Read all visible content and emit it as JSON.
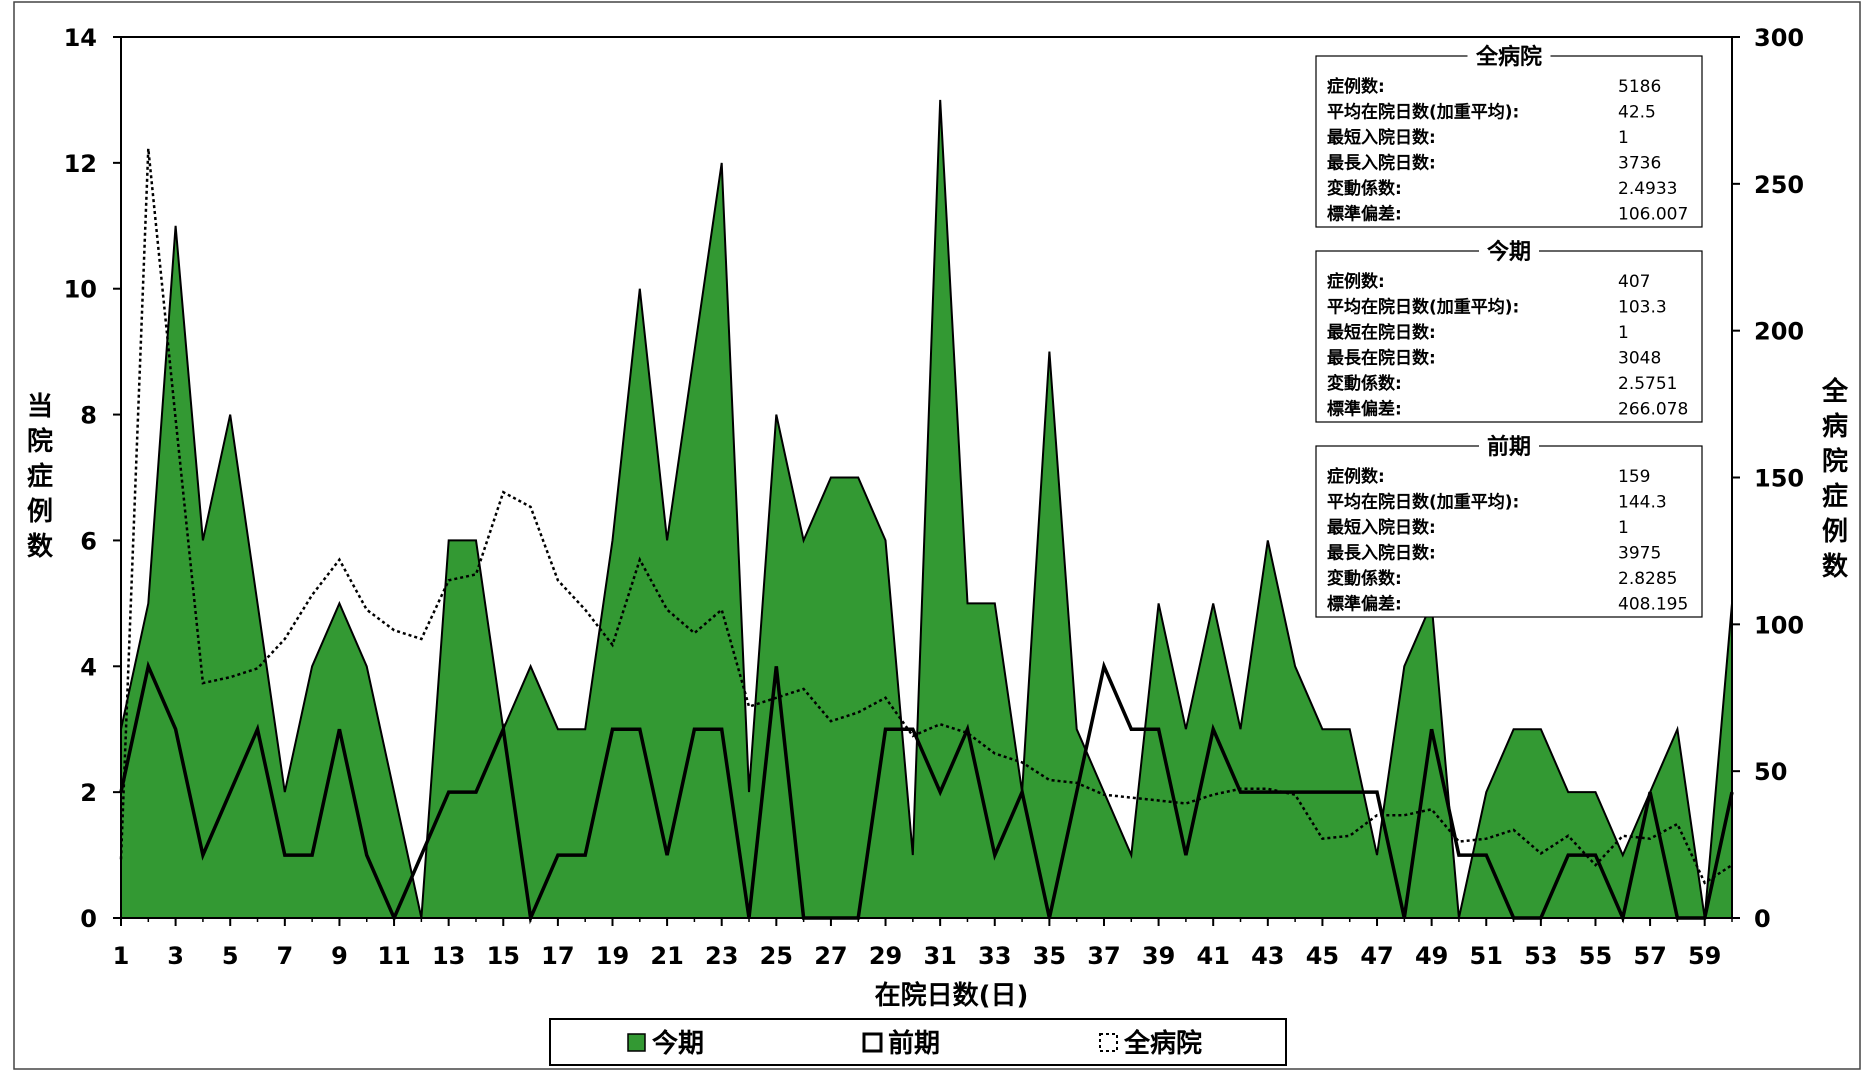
{
  "colors": {
    "current_fill": "#339933",
    "line": "#000000"
  },
  "chart_data": {
    "type": "area",
    "xlabel": "在院日数(日)",
    "ylabel_left": "当院症例数",
    "ylabel_right": "全病院症例数",
    "xlim": [
      1,
      60
    ],
    "ylim_left": [
      0,
      14
    ],
    "ylim_right": [
      0,
      300
    ],
    "x_ticks": [
      1,
      3,
      5,
      7,
      9,
      11,
      13,
      15,
      17,
      19,
      21,
      23,
      25,
      27,
      29,
      31,
      33,
      35,
      37,
      39,
      41,
      43,
      45,
      47,
      49,
      51,
      53,
      55,
      57,
      59
    ],
    "y_ticks_left": [
      0,
      2,
      4,
      6,
      8,
      10,
      12,
      14
    ],
    "y_ticks_right": [
      0,
      50,
      100,
      150,
      200,
      250,
      300
    ],
    "x": [
      1,
      2,
      3,
      4,
      5,
      6,
      7,
      8,
      9,
      10,
      11,
      12,
      13,
      14,
      15,
      16,
      17,
      18,
      19,
      20,
      21,
      22,
      23,
      24,
      25,
      26,
      27,
      28,
      29,
      30,
      31,
      32,
      33,
      34,
      35,
      36,
      37,
      38,
      39,
      40,
      41,
      42,
      43,
      44,
      45,
      46,
      47,
      48,
      49,
      50,
      51,
      52,
      53,
      54,
      55,
      56,
      57,
      58,
      59,
      60
    ],
    "series": [
      {
        "name": "今期",
        "style": "area",
        "axis": "left",
        "values": [
          3,
          5,
          11,
          6,
          8,
          5,
          2,
          4,
          5,
          4,
          2,
          0,
          6,
          6,
          3,
          4,
          3,
          3,
          6,
          10,
          6,
          9,
          12,
          2,
          8,
          6,
          7,
          7,
          6,
          1,
          13,
          5,
          5,
          2,
          9,
          3,
          2,
          1,
          5,
          3,
          5,
          3,
          6,
          4,
          3,
          3,
          1,
          4,
          5,
          0,
          2,
          3,
          3,
          2,
          2,
          1,
          2,
          3,
          0,
          5
        ]
      },
      {
        "name": "前期",
        "style": "line",
        "axis": "left",
        "values": [
          2,
          4,
          3,
          1,
          2,
          3,
          1,
          1,
          3,
          1,
          0,
          1,
          2,
          2,
          3,
          0,
          1,
          1,
          3,
          3,
          1,
          3,
          3,
          0,
          4,
          0,
          0,
          0,
          3,
          3,
          2,
          3,
          1,
          2,
          0,
          2,
          4,
          3,
          3,
          1,
          3,
          2,
          2,
          2,
          2,
          2,
          2,
          0,
          3,
          1,
          1,
          0,
          0,
          1,
          1,
          0,
          2,
          0,
          0,
          2
        ]
      },
      {
        "name": "全病院",
        "style": "dotted",
        "axis": "right",
        "values": [
          20,
          262,
          170,
          80,
          82,
          85,
          95,
          110,
          122,
          105,
          98,
          95,
          115,
          117,
          145,
          140,
          115,
          105,
          93,
          122,
          105,
          97,
          105,
          72,
          75,
          78,
          67,
          70,
          75,
          62,
          66,
          63,
          56,
          53,
          47,
          46,
          42,
          41,
          40,
          39,
          42,
          44,
          44,
          42,
          27,
          28,
          35,
          35,
          37,
          26,
          27,
          30,
          22,
          28,
          18,
          28,
          27,
          32,
          12,
          18
        ]
      }
    ],
    "stats": [
      {
        "title": "全病院",
        "rows": [
          {
            "label": "症例数:",
            "value": "5186"
          },
          {
            "label": "平均在院日数(加重平均):",
            "value": "42.5"
          },
          {
            "label": "最短入院日数:",
            "value": "1"
          },
          {
            "label": "最長入院日数:",
            "value": "3736"
          },
          {
            "label": "変動係数:",
            "value": "2.4933"
          },
          {
            "label": "標準偏差:",
            "value": "106.007"
          }
        ]
      },
      {
        "title": "今期",
        "rows": [
          {
            "label": "症例数:",
            "value": "407"
          },
          {
            "label": "平均在院日数(加重平均):",
            "value": "103.3"
          },
          {
            "label": "最短在院日数:",
            "value": "1"
          },
          {
            "label": "最長在院日数:",
            "value": "3048"
          },
          {
            "label": "変動係数:",
            "value": "2.5751"
          },
          {
            "label": "標準偏差:",
            "value": "266.078"
          }
        ]
      },
      {
        "title": "前期",
        "rows": [
          {
            "label": "症例数:",
            "value": "159"
          },
          {
            "label": "平均在院日数(加重平均):",
            "value": "144.3"
          },
          {
            "label": "最短入院日数:",
            "value": "1"
          },
          {
            "label": "最長入院日数:",
            "value": "3975"
          },
          {
            "label": "変動係数:",
            "value": "2.8285"
          },
          {
            "label": "標準偏差:",
            "value": "408.195"
          }
        ]
      }
    ],
    "legend": {
      "position": "bottom",
      "items": [
        "今期",
        "前期",
        "全病院"
      ]
    }
  }
}
